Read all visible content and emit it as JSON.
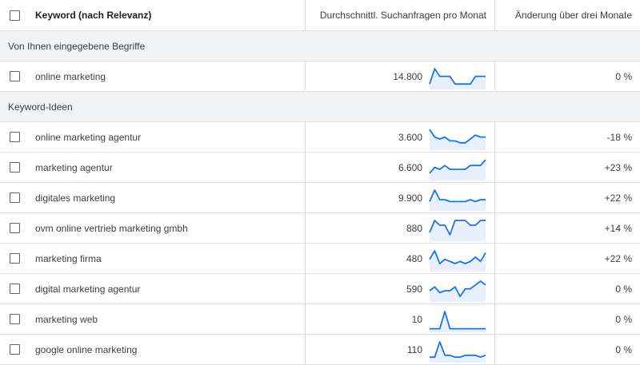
{
  "header": {
    "keyword_label": "Keyword (nach Relevanz)",
    "volume_label": "Durchschnittl. Suchanfragen pro Monat",
    "change_label": "Änderung über drei Monate"
  },
  "colors": {
    "sparkline_stroke": "#1a73e8",
    "sparkline_fill": "#e8f0fe",
    "group_bg": "#f1f3f4",
    "divider": "#e0e0e0"
  },
  "groups": [
    {
      "label": "Von Ihnen eingegebene Begriffe",
      "rows": [
        {
          "keyword": "online marketing",
          "volume": "14.800",
          "change": "0 %",
          "trend": [
            2,
            10,
            6,
            6,
            6,
            2,
            2,
            2,
            2,
            6,
            6,
            6
          ]
        }
      ]
    },
    {
      "label": "Keyword-Ideen",
      "rows": [
        {
          "keyword": "online marketing agentur",
          "volume": "3.600",
          "change": "-18 %",
          "trend": [
            10,
            6,
            5,
            6,
            4,
            4,
            3,
            3,
            5,
            7,
            6,
            6
          ]
        },
        {
          "keyword": "marketing agentur",
          "volume": "6.600",
          "change": "+23 %",
          "trend": [
            3,
            6,
            5,
            7,
            5,
            5,
            5,
            5,
            7,
            7,
            7,
            10
          ]
        },
        {
          "keyword": "digitales marketing",
          "volume": "9.900",
          "change": "+22 %",
          "trend": [
            4,
            10,
            5,
            5,
            4,
            4,
            4,
            4,
            5,
            4,
            5,
            5
          ]
        },
        {
          "keyword": "ovm online vertrieb marketing gmbh",
          "volume": "880",
          "change": "+14 %",
          "trend": [
            3,
            8,
            6,
            6,
            2,
            8,
            8,
            8,
            6,
            6,
            8,
            8
          ]
        },
        {
          "keyword": "marketing firma",
          "volume": "480",
          "change": "+22 %",
          "trend": [
            5,
            9,
            3,
            5,
            4,
            3,
            4,
            3,
            4,
            6,
            4,
            8
          ]
        },
        {
          "keyword": "digital marketing agentur",
          "volume": "590",
          "change": "0 %",
          "trend": [
            5,
            7,
            4,
            5,
            5,
            7,
            2,
            6,
            6,
            8,
            10,
            8
          ]
        },
        {
          "keyword": "marketing web",
          "volume": "10",
          "change": "0 %",
          "trend": [
            1,
            1,
            1,
            10,
            1,
            1,
            1,
            1,
            1,
            1,
            1,
            1
          ]
        },
        {
          "keyword": "google online marketing",
          "volume": "110",
          "change": "0 %",
          "trend": [
            2,
            2,
            10,
            3,
            3,
            2,
            2,
            3,
            3,
            3,
            2,
            3
          ]
        }
      ]
    }
  ]
}
